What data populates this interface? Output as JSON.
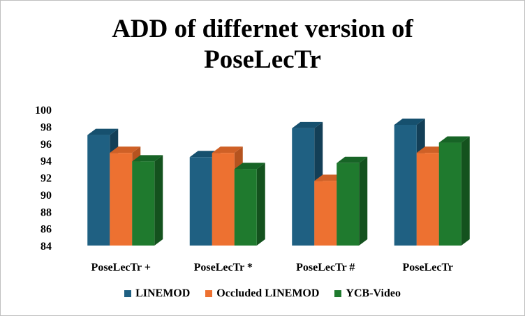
{
  "chart_data": {
    "type": "bar",
    "title_lines": [
      "ADD of differnet version of",
      "PoseLecTr"
    ],
    "categories": [
      "PoseLecTr +",
      "PoseLecTr *",
      "PoseLecTr #",
      "PoseLecTr"
    ],
    "series": [
      {
        "name": "LINEMOD",
        "values": [
          97.0,
          94.4,
          97.8,
          98.2
        ],
        "color": "#1F6082",
        "side": "#133F57",
        "top": "#16506E"
      },
      {
        "name": "Occluded LINEMOD",
        "values": [
          94.9,
          94.9,
          91.6,
          94.9
        ],
        "color": "#ED7131",
        "side": "#B5531F",
        "top": "#CF6026"
      },
      {
        "name": "YCB-Video",
        "values": [
          93.9,
          93.0,
          93.7,
          96.1
        ],
        "color": "#1F7A2E",
        "side": "#14521E",
        "top": "#176426"
      }
    ],
    "yticks": [
      84,
      86,
      88,
      90,
      92,
      94,
      96,
      98,
      100
    ],
    "ylim": [
      84,
      100
    ],
    "xlabel": "",
    "ylabel": "",
    "grid": false,
    "legend_position": "bottom"
  }
}
